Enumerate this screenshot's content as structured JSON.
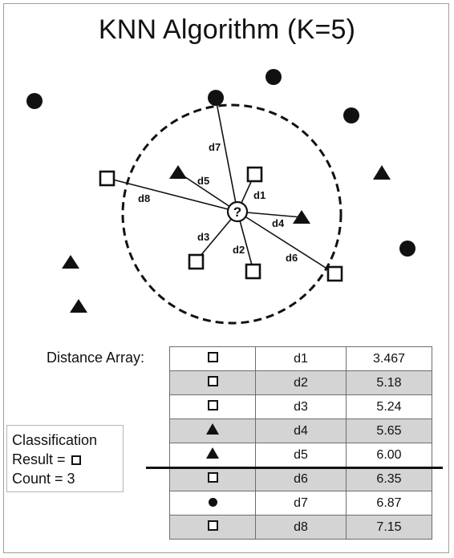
{
  "title": "KNN Algorithm (K=5)",
  "query_label": "?",
  "distance_label": "Distance Array:",
  "classification": {
    "line1": "Classification",
    "line2": "Result =",
    "result_icon": "square-icon",
    "line3": "Count = 3"
  },
  "edges": [
    {
      "label": "d1",
      "shape": "square"
    },
    {
      "label": "d2",
      "shape": "square"
    },
    {
      "label": "d3",
      "shape": "square"
    },
    {
      "label": "d4",
      "shape": "triangle"
    },
    {
      "label": "d5",
      "shape": "triangle"
    },
    {
      "label": "d6",
      "shape": "square"
    },
    {
      "label": "d7",
      "shape": "circle"
    },
    {
      "label": "d8",
      "shape": "square"
    }
  ],
  "table": [
    {
      "shape": "square",
      "name": "d1",
      "value": "3.467"
    },
    {
      "shape": "square",
      "name": "d2",
      "value": "5.18"
    },
    {
      "shape": "square",
      "name": "d3",
      "value": "5.24"
    },
    {
      "shape": "triangle",
      "name": "d4",
      "value": "5.65"
    },
    {
      "shape": "triangle",
      "name": "d5",
      "value": "6.00"
    },
    {
      "shape": "square",
      "name": "d6",
      "value": "6.35"
    },
    {
      "shape": "circle",
      "name": "d7",
      "value": "6.87"
    },
    {
      "shape": "square",
      "name": "d8",
      "value": "7.15"
    }
  ],
  "k": 5
}
